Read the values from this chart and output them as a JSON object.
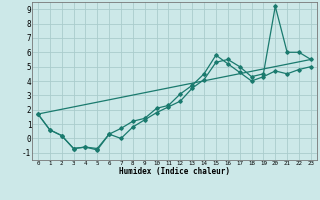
{
  "title": "",
  "xlabel": "Humidex (Indice chaleur)",
  "background_color": "#cce8e8",
  "grid_color": "#aacccc",
  "line_color": "#1a7a6e",
  "xlim": [
    -0.5,
    23.5
  ],
  "ylim": [
    -1.5,
    9.5
  ],
  "xticks": [
    0,
    1,
    2,
    3,
    4,
    5,
    6,
    7,
    8,
    9,
    10,
    11,
    12,
    13,
    14,
    15,
    16,
    17,
    18,
    19,
    20,
    21,
    22,
    23
  ],
  "yticks": [
    -1,
    0,
    1,
    2,
    3,
    4,
    5,
    6,
    7,
    8,
    9
  ],
  "line1_x": [
    0,
    1,
    2,
    3,
    4,
    5,
    6,
    7,
    8,
    9,
    10,
    11,
    12,
    13,
    14,
    15,
    16,
    17,
    18,
    19,
    20,
    21,
    22,
    23
  ],
  "line1_y": [
    1.7,
    0.6,
    0.2,
    -0.7,
    -0.6,
    -0.7,
    0.3,
    0.0,
    0.8,
    1.3,
    1.8,
    2.2,
    2.6,
    3.5,
    4.1,
    5.3,
    5.5,
    5.0,
    4.3,
    4.5,
    9.2,
    6.0,
    6.0,
    5.5
  ],
  "line2_x": [
    0,
    1,
    2,
    3,
    4,
    5,
    6,
    7,
    8,
    9,
    10,
    11,
    12,
    13,
    14,
    15,
    16,
    17,
    18,
    19,
    20,
    21,
    22,
    23
  ],
  "line2_y": [
    1.7,
    0.6,
    0.2,
    -0.7,
    -0.6,
    -0.8,
    0.3,
    0.7,
    1.2,
    1.4,
    2.1,
    2.3,
    3.1,
    3.7,
    4.5,
    5.8,
    5.2,
    4.6,
    4.0,
    4.3,
    4.7,
    4.5,
    4.8,
    5.0
  ],
  "line3_x": [
    0,
    23
  ],
  "line3_y": [
    1.7,
    5.5
  ]
}
